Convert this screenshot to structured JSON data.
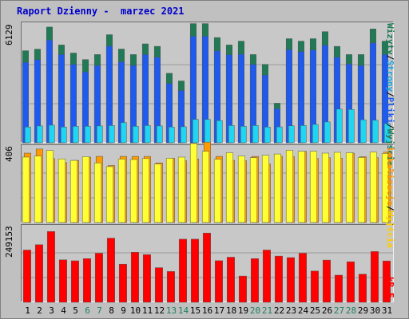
{
  "title": "Raport Dzienny -  marzec 2021",
  "chart_data": {
    "type": "bar",
    "days": [
      "1",
      "2",
      "3",
      "4",
      "5",
      "6",
      "7",
      "8",
      "9",
      "10",
      "11",
      "12",
      "13",
      "14",
      "15",
      "16",
      "17",
      "18",
      "19",
      "20",
      "21",
      "22",
      "23",
      "24",
      "25",
      "26",
      "27",
      "28",
      "29",
      "30",
      "31"
    ],
    "weekend_days": [
      "6",
      "7",
      "13",
      "14",
      "20",
      "21",
      "27",
      "28"
    ],
    "panels": [
      {
        "name": "top",
        "ymax_label": "6129",
        "ymax": 6129,
        "series": [
          {
            "name": "Wizyty",
            "color": "#1f7a55",
            "values": [
              4810,
              4895,
              6050,
              5110,
              4690,
              4350,
              4610,
              5650,
              4900,
              4610,
              5170,
              5040,
              3630,
              3230,
              6230,
              6230,
              5500,
              5110,
              5310,
              4610,
              4100,
              2070,
              5440,
              5310,
              5440,
              5810,
              5040,
              4610,
              4610,
              5950,
              5310
            ]
          },
          {
            "name": "Strony",
            "color": "#1e5aee",
            "values": [
              4200,
              4350,
              5370,
              4610,
              4100,
              3700,
              4040,
              5050,
              4230,
              4040,
              4610,
              4470,
              3100,
              2730,
              5570,
              5570,
              4800,
              4600,
              4630,
              4100,
              3540,
              1780,
              4870,
              4770,
              4850,
              5100,
              4470,
              4120,
              4040,
              5210,
              4610
            ]
          },
          {
            "name": "Pliki",
            "color": "#20d5f2",
            "values": [
              820,
              880,
              920,
              820,
              860,
              860,
              880,
              900,
              1060,
              860,
              900,
              880,
              820,
              840,
              1220,
              1220,
              1160,
              900,
              860,
              900,
              820,
              830,
              890,
              900,
              960,
              1090,
              1760,
              1740,
              1200,
              1180,
              1000
            ]
          }
        ]
      },
      {
        "name": "mid",
        "ymax_label": "406",
        "ymax": 406,
        "series": [
          {
            "name": "Lokalizacje",
            "color": "#ff9a00",
            "values": [
              380,
              402,
              350,
              328,
              340,
              358,
              362,
              312,
              362,
              362,
              362,
              326,
              352,
              338,
              348,
              440,
              362,
              340,
              338,
              362,
              320,
              362,
              360,
              390,
              350,
              355,
              352,
              380,
              360,
              355,
              385
            ]
          },
          {
            "name": "Wyjscia",
            "color": "#ffff33",
            "values": [
              358,
              364,
              394,
              348,
              340,
              360,
              326,
              306,
              347,
              345,
              350,
              320,
              352,
              358,
              432,
              390,
              346,
              382,
              364,
              355,
              368,
              375,
              395,
              390,
              390,
              380,
              384,
              382,
              356,
              385,
              378
            ]
          }
        ]
      },
      {
        "name": "bot",
        "ymax_label": "249153",
        "ymax": 249153,
        "series": [
          {
            "name": "kB F",
            "color": "#ff0000",
            "values": [
              175600,
              193500,
              237600,
              142600,
              139400,
              146600,
              164700,
              215500,
              128000,
              167900,
              160000,
              116400,
              103500,
              211800,
              211800,
              232600,
              139600,
              151500,
              88100,
              146600,
              175600,
              155200,
              150000,
              164700,
              104700,
              141600,
              91200,
              136000,
              94300,
              170400,
              138700
            ]
          }
        ]
      }
    ],
    "right_labels": [
      {
        "parts": [
          "Wizyty",
          "/",
          "Strony",
          "/",
          "Pliki",
          "/",
          "Wyjścia"
        ],
        "colors": [
          "#1f7a55",
          "#000000",
          "#20a6d8",
          "#000000",
          "#1e5aee",
          "#000000",
          "#1f7a55"
        ]
      },
      {
        "parts": [
          "Lokalizacje",
          "/",
          "Wyjścia"
        ],
        "colors": [
          "#ff9a00",
          "#000000",
          "#ffcc00"
        ]
      },
      {
        "parts": [
          "kB F"
        ],
        "colors": [
          "#ff0000"
        ]
      }
    ]
  }
}
